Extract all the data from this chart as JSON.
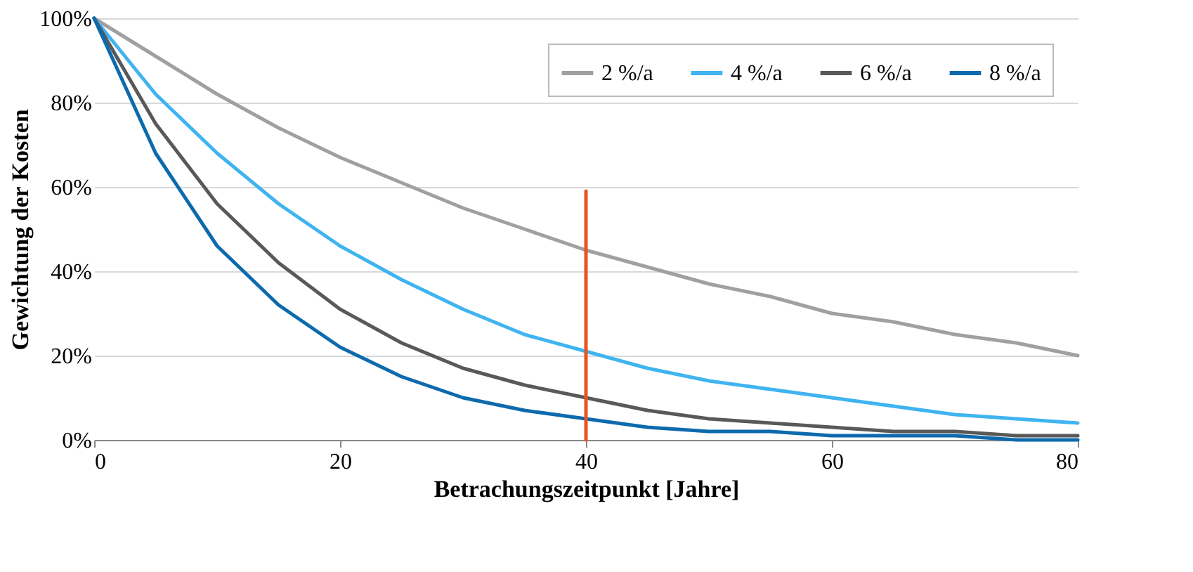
{
  "chart_data": {
    "type": "line",
    "xlabel": "Betrachungszeitpunkt [Jahre]",
    "ylabel": "Gewichtung der Kosten",
    "xlim": [
      0,
      80
    ],
    "xticks": [
      0,
      20,
      40,
      60,
      80
    ],
    "ylim": [
      0,
      100
    ],
    "yticks": [
      {
        "value": 0,
        "label": "0%"
      },
      {
        "value": 20,
        "label": "20%"
      },
      {
        "value": 40,
        "label": "40%"
      },
      {
        "value": 60,
        "label": "60%"
      },
      {
        "value": 80,
        "label": "80%"
      },
      {
        "value": 100,
        "label": "100%"
      }
    ],
    "grid": "y",
    "legend": "top right",
    "line_style": "solid",
    "marker": "none",
    "x": [
      0,
      5,
      10,
      15,
      20,
      25,
      30,
      35,
      40,
      45,
      50,
      55,
      60,
      65,
      70,
      75,
      80
    ],
    "series": [
      {
        "name": "2 %/a",
        "color": "#a0a0a0",
        "values": [
          100,
          91,
          82,
          74,
          67,
          61,
          55,
          50,
          45,
          41,
          37,
          34,
          30,
          28,
          25,
          23,
          20
        ]
      },
      {
        "name": "4 %/a",
        "color": "#3fb4f0",
        "values": [
          100,
          82,
          68,
          56,
          46,
          38,
          31,
          25,
          21,
          17,
          14,
          12,
          10,
          8,
          6,
          5,
          4
        ]
      },
      {
        "name": "6 %/a",
        "color": "#595959",
        "values": [
          100,
          75,
          56,
          42,
          31,
          23,
          17,
          13,
          10,
          7,
          5,
          4,
          3,
          2,
          2,
          1,
          1
        ]
      },
      {
        "name": "8 %/a",
        "color": "#0d6aad",
        "values": [
          100,
          68,
          46,
          32,
          22,
          15,
          10,
          7,
          5,
          3,
          2,
          2,
          1,
          1,
          1,
          0,
          0
        ]
      },
      {
        "type": "line",
        "color": "#e8541e",
        "x": [
          40,
          40
        ],
        "values": [
          0,
          59
        ]
      }
    ]
  }
}
